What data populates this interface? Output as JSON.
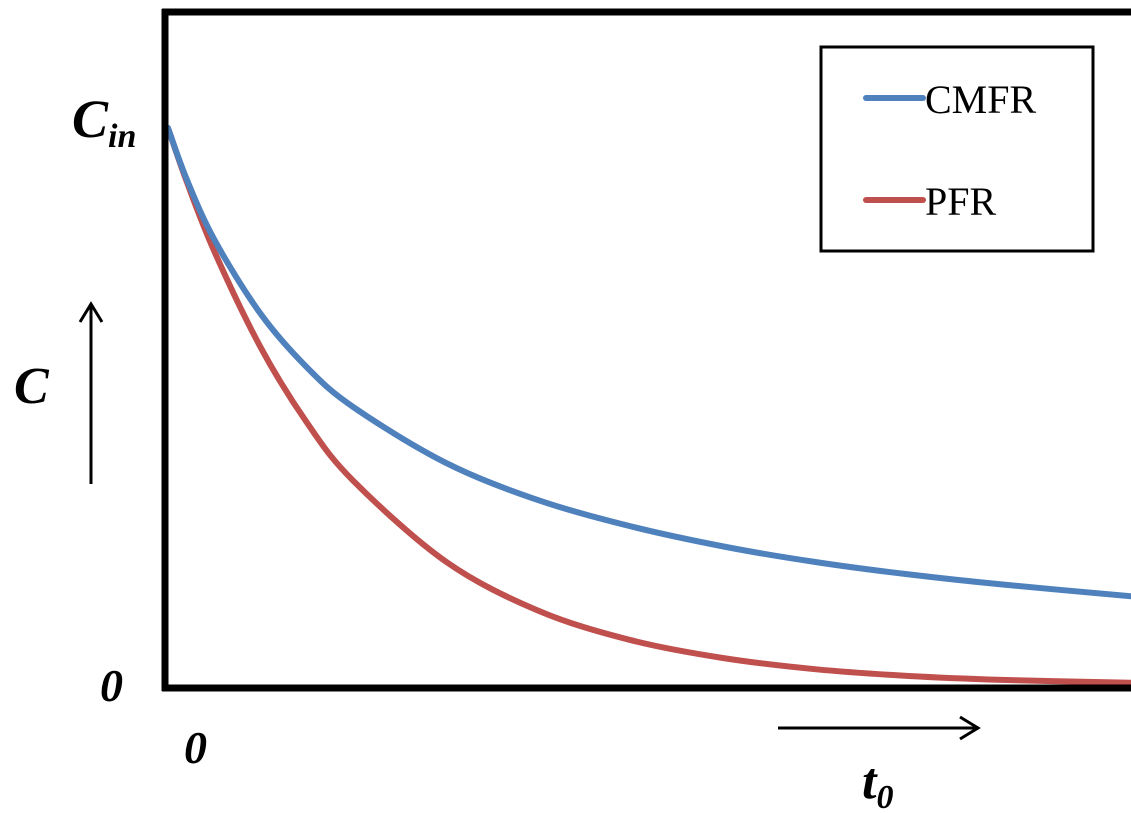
{
  "chart_data": {
    "type": "line",
    "title": "",
    "xlabel": "t",
    "xlabel_subscript": "0",
    "ylabel": "C",
    "y_top_tick": {
      "main": "C",
      "subscript": "in"
    },
    "x_origin_tick": "0",
    "y_origin_tick": "0",
    "xlim": [
      0,
      5.2
    ],
    "ylim": [
      0,
      1.2
    ],
    "grid": false,
    "legend": {
      "position": "top-right",
      "entries": [
        "CMFR",
        "PFR"
      ]
    },
    "series": [
      {
        "name": "CMFR",
        "color": "#4F81BD",
        "x": [
          0,
          0.1,
          0.25,
          0.5,
          0.75,
          1,
          1.5,
          2,
          2.5,
          3,
          3.5,
          4,
          4.5,
          5.2
        ],
        "y": [
          1,
          0.909,
          0.8,
          0.667,
          0.571,
          0.5,
          0.4,
          0.333,
          0.286,
          0.25,
          0.222,
          0.2,
          0.182,
          0.161
        ]
      },
      {
        "name": "PFR",
        "color": "#C0504D",
        "x": [
          0,
          0.1,
          0.25,
          0.5,
          0.75,
          1,
          1.5,
          2,
          2.5,
          3,
          3.5,
          4,
          4.5,
          5.2
        ],
        "y": [
          1,
          0.905,
          0.779,
          0.607,
          0.472,
          0.368,
          0.223,
          0.135,
          0.082,
          0.05,
          0.03,
          0.018,
          0.011,
          0.006
        ]
      }
    ]
  }
}
